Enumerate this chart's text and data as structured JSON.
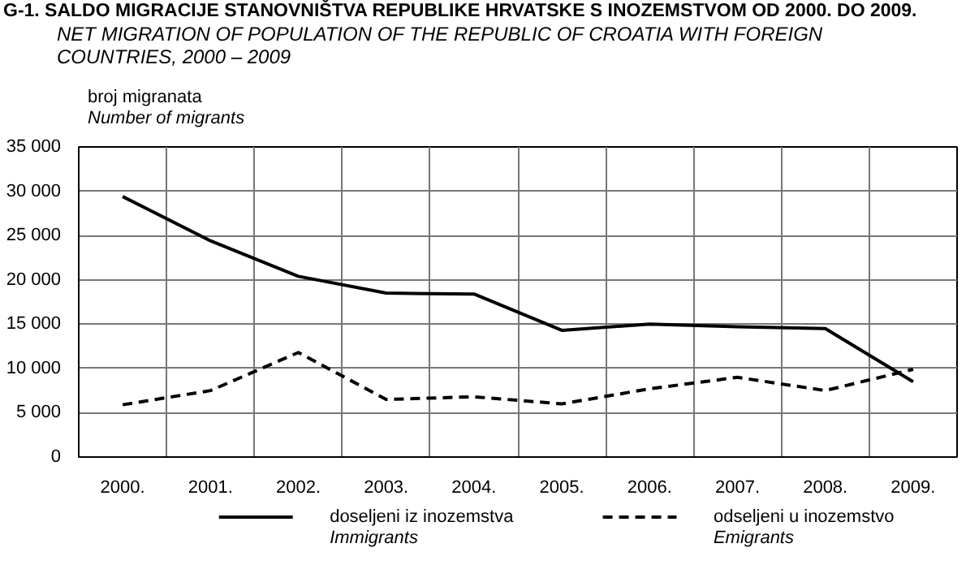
{
  "chart_data": {
    "type": "line",
    "title": "G-1.  SALDO MIGRACIJE STANOVNIŠTVA REPUBLIKE HRVATSKE S INOZEMSTVOM OD 2000. DO 2009.",
    "subtitle": "NET MIGRATION OF POPULATION OF THE REPUBLIC OF CROATIA WITH FOREIGN\nCOUNTRIES, 2000 – 2009",
    "ylabel": "broj migranata\nNumber of migrants",
    "categories": [
      "2000.",
      "2001.",
      "2002.",
      "2003.",
      "2004.",
      "2005.",
      "2006.",
      "2007.",
      "2008.",
      "2009."
    ],
    "series": [
      {
        "name": "doseljeni iz inozemstva\nImmigrants",
        "color": "#000000",
        "line_style": "solid",
        "values": [
          29400,
          24400,
          20400,
          18500,
          18400,
          14300,
          15000,
          14700,
          14500,
          8500
        ]
      },
      {
        "name": "odseljeni u inozemstvo\nEmigrants",
        "color": "#000000",
        "line_style": "dashed",
        "values": [
          5900,
          7500,
          11800,
          6500,
          6800,
          6000,
          7700,
          9000,
          7500,
          9900
        ]
      }
    ],
    "ylim": [
      0,
      35000
    ],
    "yticks": [
      {
        "value": 0,
        "label": "0"
      },
      {
        "value": 5000,
        "label": "5 000"
      },
      {
        "value": 10000,
        "label": "10 000"
      },
      {
        "value": 15000,
        "label": "15 000"
      },
      {
        "value": 20000,
        "label": "20 000"
      },
      {
        "value": 25000,
        "label": "25 000"
      },
      {
        "value": 30000,
        "label": "30 000"
      },
      {
        "value": 35000,
        "label": "35 000"
      }
    ],
    "grid": true,
    "legend": "bottom",
    "marker": "none"
  }
}
